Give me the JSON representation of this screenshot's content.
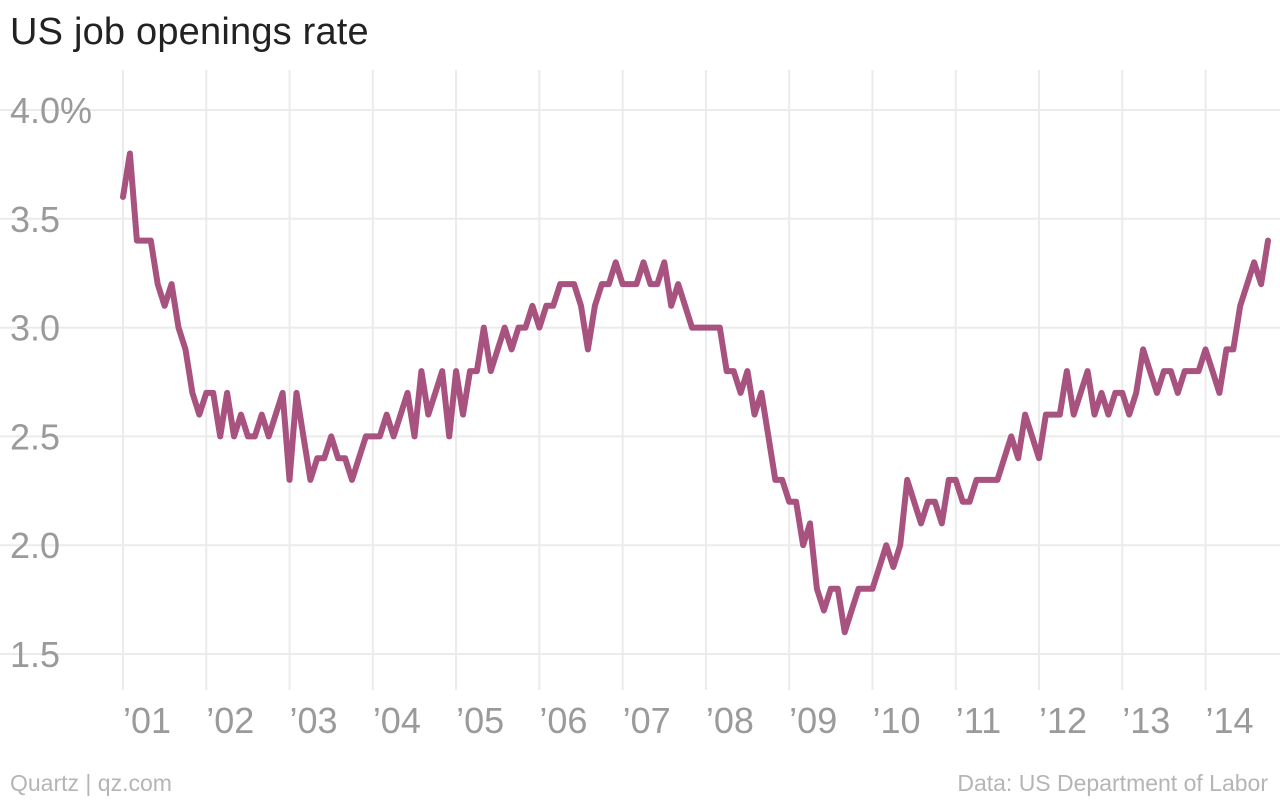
{
  "title": "US job openings rate",
  "footer": {
    "source_left": "Quartz | qz.com",
    "source_right": "Data: US Department of Labor"
  },
  "colors": {
    "line": "#a8537f",
    "grid": "#ebebeb",
    "tick_text": "#9a9a9a"
  },
  "chart_data": {
    "type": "line",
    "title": "US job openings rate",
    "xlabel": "",
    "ylabel": "",
    "x_start": "2001-01",
    "x_frequency": "monthly",
    "xlim": [
      2001.0,
      2014.75
    ],
    "ylim": [
      1.5,
      4.0
    ],
    "grid": true,
    "x_ticks": [
      {
        "value": 2001,
        "label": "’01"
      },
      {
        "value": 2002,
        "label": "’02"
      },
      {
        "value": 2003,
        "label": "’03"
      },
      {
        "value": 2004,
        "label": "’04"
      },
      {
        "value": 2005,
        "label": "’05"
      },
      {
        "value": 2006,
        "label": "’06"
      },
      {
        "value": 2007,
        "label": "’07"
      },
      {
        "value": 2008,
        "label": "’08"
      },
      {
        "value": 2009,
        "label": "’09"
      },
      {
        "value": 2010,
        "label": "’10"
      },
      {
        "value": 2011,
        "label": "’11"
      },
      {
        "value": 2012,
        "label": "’12"
      },
      {
        "value": 2013,
        "label": "’13"
      },
      {
        "value": 2014,
        "label": "’14"
      }
    ],
    "y_ticks": [
      {
        "value": 4.0,
        "label": "4.0%"
      },
      {
        "value": 3.5,
        "label": "3.5"
      },
      {
        "value": 3.0,
        "label": "3.0"
      },
      {
        "value": 2.5,
        "label": "2.5"
      },
      {
        "value": 2.0,
        "label": "2.0"
      },
      {
        "value": 1.5,
        "label": "1.5"
      }
    ],
    "series": [
      {
        "values": [
          3.6,
          3.8,
          3.4,
          3.4,
          3.4,
          3.2,
          3.1,
          3.2,
          3.0,
          2.9,
          2.7,
          2.6,
          2.7,
          2.7,
          2.5,
          2.7,
          2.5,
          2.6,
          2.5,
          2.5,
          2.6,
          2.5,
          2.6,
          2.7,
          2.3,
          2.7,
          2.5,
          2.3,
          2.4,
          2.4,
          2.5,
          2.4,
          2.4,
          2.3,
          2.4,
          2.5,
          2.5,
          2.5,
          2.6,
          2.5,
          2.6,
          2.7,
          2.5,
          2.8,
          2.6,
          2.7,
          2.8,
          2.5,
          2.8,
          2.6,
          2.8,
          2.8,
          3.0,
          2.8,
          2.9,
          3.0,
          2.9,
          3.0,
          3.0,
          3.1,
          3.0,
          3.1,
          3.1,
          3.2,
          3.2,
          3.2,
          3.1,
          2.9,
          3.1,
          3.2,
          3.2,
          3.3,
          3.2,
          3.2,
          3.2,
          3.3,
          3.2,
          3.2,
          3.3,
          3.1,
          3.2,
          3.1,
          3.0,
          3.0,
          3.0,
          3.0,
          3.0,
          2.8,
          2.8,
          2.7,
          2.8,
          2.6,
          2.7,
          2.5,
          2.3,
          2.3,
          2.2,
          2.2,
          2.0,
          2.1,
          1.8,
          1.7,
          1.8,
          1.8,
          1.6,
          1.7,
          1.8,
          1.8,
          1.8,
          1.9,
          2.0,
          1.9,
          2.0,
          2.3,
          2.2,
          2.1,
          2.2,
          2.2,
          2.1,
          2.3,
          2.3,
          2.2,
          2.2,
          2.3,
          2.3,
          2.3,
          2.3,
          2.4,
          2.5,
          2.4,
          2.6,
          2.5,
          2.4,
          2.6,
          2.6,
          2.6,
          2.8,
          2.6,
          2.7,
          2.8,
          2.6,
          2.7,
          2.6,
          2.7,
          2.7,
          2.6,
          2.7,
          2.9,
          2.8,
          2.7,
          2.8,
          2.8,
          2.7,
          2.8,
          2.8,
          2.8,
          2.9,
          2.8,
          2.7,
          2.9,
          2.9,
          3.1,
          3.2,
          3.3,
          3.2,
          3.4
        ]
      }
    ]
  }
}
